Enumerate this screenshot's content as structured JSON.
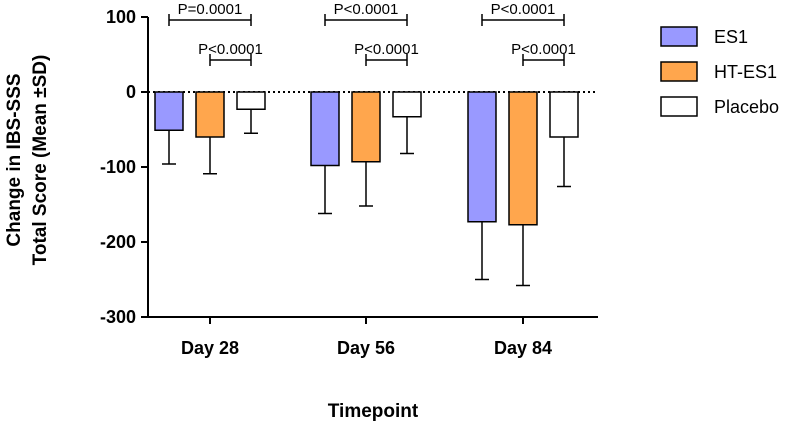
{
  "chart_data": {
    "type": "bar",
    "categories": [
      "Day 28",
      "Day 56",
      "Day 84"
    ],
    "series": [
      {
        "name": "ES1",
        "color": "#9999ff",
        "values": [
          -51,
          -98,
          -173
        ],
        "sd": [
          45,
          64,
          77
        ]
      },
      {
        "name": "HT-ES1",
        "color": "#ffa64d",
        "values": [
          -60,
          -93,
          -177
        ],
        "sd": [
          49,
          59,
          81
        ]
      },
      {
        "name": "Placebo",
        "color": "#ffffff",
        "values": [
          -23,
          -33,
          -60
        ],
        "sd": [
          32,
          49,
          66
        ]
      }
    ],
    "ylim": [
      -300,
      100
    ],
    "yticks": [
      100,
      0,
      -100,
      -200,
      -300
    ],
    "ytick_labels": [
      "100",
      "0",
      "-100",
      "-200",
      "-300"
    ],
    "xlabel": "Timepoint",
    "ylabel_lines": [
      "Change in IBS-SSS",
      "Total Score (Mean ±SD)"
    ],
    "legend_position": "right",
    "annotations": [
      {
        "category": 0,
        "from_series": 0,
        "to_series": 2,
        "level": "upper",
        "text": "P=0.0001"
      },
      {
        "category": 0,
        "from_series": 1,
        "to_series": 2,
        "level": "lower",
        "text": "P<0.0001"
      },
      {
        "category": 1,
        "from_series": 0,
        "to_series": 2,
        "level": "upper",
        "text": "P<0.0001"
      },
      {
        "category": 1,
        "from_series": 1,
        "to_series": 2,
        "level": "lower",
        "text": "P<0.0001"
      },
      {
        "category": 2,
        "from_series": 0,
        "to_series": 2,
        "level": "upper",
        "text": "P<0.0001"
      },
      {
        "category": 2,
        "from_series": 1,
        "to_series": 2,
        "level": "lower",
        "text": "P<0.0001"
      }
    ]
  }
}
